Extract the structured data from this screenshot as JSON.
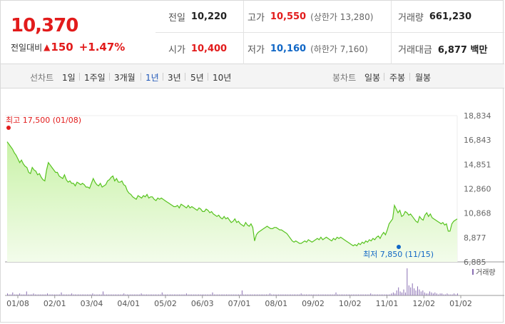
{
  "summary": {
    "price": "10,370",
    "change_label": "전일대비",
    "change_arrow": "▲",
    "change_amount": "150",
    "change_pct": "+1.47%"
  },
  "info": {
    "prev_label": "전일",
    "prev_value": "10,220",
    "high_label": "고가",
    "high_value": "10,550",
    "upper_limit": "(상한가 13,280)",
    "volume_label": "거래량",
    "volume_value": "661,230",
    "open_label": "시가",
    "open_value": "10,400",
    "low_label": "저가",
    "low_value": "10,160",
    "lower_limit": "(하한가 7,160)",
    "amount_label": "거래대금",
    "amount_value": "6,877 백만"
  },
  "tabs": {
    "line_label": "선차트",
    "periods": [
      "1일",
      "1주일",
      "3개월",
      "1년",
      "3년",
      "5년",
      "10년"
    ],
    "selected_period": "1년",
    "candle_label": "봉차트",
    "candle_periods": [
      "일봉",
      "주봉",
      "월봉"
    ]
  },
  "colors": {
    "up": "#e21b1b",
    "down": "#1167c6",
    "line": "#57c31f",
    "area_top": "#c9f2a8",
    "area_bottom": "#f3fceb",
    "volume": "#8a6fb3"
  },
  "chart_data": {
    "type": "area",
    "title": "",
    "ylim": [
      6885,
      18834
    ],
    "y_ticks": [
      "18,834",
      "16,843",
      "14,851",
      "12,860",
      "10,868",
      "8,877",
      "6,885"
    ],
    "x_ticks": [
      "01/08",
      "02/01",
      "03/04",
      "04/01",
      "05/02",
      "06/03",
      "07/01",
      "08/01",
      "09/02",
      "10/02",
      "11/01",
      "12/02",
      "01/02"
    ],
    "max_annotation": "최고 17,500 (01/08)",
    "min_annotation": "최저 7,850 (11/15)",
    "max_point": {
      "index": 0,
      "value": 17500
    },
    "min_point": {
      "index": 216,
      "value": 7850
    },
    "volume_legend": "거래량",
    "series": [
      {
        "values": [
          16700,
          16500,
          16300,
          16100,
          15800,
          15600,
          15300,
          15000,
          15200,
          14900,
          14700,
          14600,
          14200,
          14100,
          14600,
          14400,
          14300,
          14000,
          14100,
          13800,
          13600,
          13500,
          14400,
          15000,
          14800,
          14600,
          14400,
          14200,
          14200,
          13900,
          13800,
          13700,
          14000,
          13600,
          13400,
          13500,
          13300,
          13300,
          13100,
          13400,
          13300,
          13200,
          13300,
          13200,
          13000,
          13000,
          12900,
          13300,
          13700,
          13400,
          13200,
          13100,
          13300,
          13000,
          13100,
          13200,
          13500,
          13600,
          13800,
          13900,
          13500,
          13700,
          13400,
          13400,
          13500,
          13200,
          13100,
          12700,
          12500,
          12400,
          12200,
          12100,
          12000,
          12300,
          12200,
          12100,
          12300,
          12200,
          12400,
          12100,
          12200,
          12200,
          12000,
          11900,
          12100,
          12000,
          12100,
          12000,
          11900,
          11800,
          11700,
          11600,
          11500,
          11400,
          11400,
          11500,
          11300,
          11600,
          11500,
          11400,
          11300,
          11500,
          11300,
          11400,
          11300,
          11200,
          11100,
          11300,
          11200,
          11000,
          11000,
          11200,
          11100,
          10900,
          11000,
          10800,
          10700,
          10600,
          10700,
          10500,
          10400,
          10600,
          10400,
          10500,
          10300,
          10100,
          10200,
          10400,
          10100,
          10200,
          10000,
          9900,
          9800,
          10100,
          9900,
          9800,
          10000,
          9700,
          8600,
          9100,
          9300,
          9400,
          9500,
          9600,
          9700,
          9800,
          9700,
          9600,
          9600,
          9700,
          9700,
          9600,
          9500,
          9500,
          9400,
          9300,
          9200,
          9000,
          8800,
          8600,
          8500,
          8600,
          8500,
          8400,
          8400,
          8500,
          8600,
          8500,
          8700,
          8600,
          8500,
          8600,
          8700,
          8800,
          8700,
          8900,
          8700,
          8800,
          8900,
          8800,
          8700,
          8600,
          8800,
          8700,
          8900,
          8800,
          8900,
          8800,
          8700,
          8600,
          8500,
          8400,
          8300,
          8200,
          8300,
          8200,
          8400,
          8300,
          8500,
          8400,
          8600,
          8500,
          8700,
          8600,
          8800,
          8700,
          8900,
          9000,
          8800,
          9100,
          9300,
          9100,
          9500,
          10000,
          10200,
          10400,
          11500,
          11200,
          10900,
          11100,
          10600,
          10700,
          11000,
          10900,
          10700,
          10800,
          10600,
          10400,
          10200,
          10100,
          10600,
          10400,
          10300,
          10700,
          10900,
          10600,
          10800,
          10500,
          10400,
          10300,
          10200,
          10100,
          10000,
          10100,
          9900,
          10000,
          9400,
          9400,
          10000,
          10200,
          10300,
          10400
        ]
      }
    ],
    "volume": [
      2,
      1,
      1,
      3,
      1,
      1,
      1,
      2,
      1,
      1,
      1,
      4,
      1,
      1,
      1,
      2,
      1,
      1,
      1,
      1,
      1,
      1,
      1,
      2,
      1,
      1,
      1,
      1,
      1,
      1,
      1,
      3,
      1,
      1,
      1,
      1,
      1,
      2,
      1,
      1,
      1,
      1,
      1,
      1,
      1,
      1,
      1,
      1,
      1,
      2,
      1,
      1,
      1,
      1,
      1,
      4,
      1,
      1,
      1,
      1,
      1,
      1,
      1,
      1,
      1,
      1,
      1,
      2,
      1,
      1,
      1,
      1,
      1,
      1,
      1,
      1,
      1,
      2,
      1,
      1,
      1,
      1,
      1,
      1,
      1,
      1,
      1,
      1,
      1,
      3,
      1,
      1,
      1,
      1,
      1,
      1,
      1,
      1,
      1,
      1,
      1,
      1,
      1,
      2,
      1,
      1,
      1,
      1,
      1,
      1,
      1,
      1,
      1,
      1,
      1,
      1,
      1,
      1,
      3,
      1,
      1,
      1,
      1,
      1,
      1,
      1,
      1,
      1,
      1,
      1,
      1,
      1,
      1,
      1,
      1,
      5,
      1,
      1,
      1,
      1,
      1,
      1,
      1,
      1,
      1,
      1,
      1,
      1,
      1,
      1,
      1,
      2,
      1,
      1,
      1,
      1,
      1,
      1,
      1,
      1,
      1,
      1,
      1,
      1,
      1,
      1,
      1,
      1,
      1,
      2,
      1,
      1,
      1,
      1,
      1,
      1,
      1,
      1,
      1,
      1,
      1,
      1,
      1,
      1,
      1,
      1,
      1,
      1,
      1,
      3,
      1,
      1,
      1,
      1,
      1,
      1,
      1,
      1,
      1,
      1,
      1,
      1,
      1,
      1,
      1,
      1,
      1,
      1,
      1,
      2,
      1,
      1,
      1,
      1,
      1,
      1,
      1,
      1,
      1,
      1,
      1,
      2,
      3,
      2,
      5,
      8,
      4,
      3,
      6,
      3,
      27,
      10,
      8,
      12,
      7,
      5,
      9,
      6,
      4,
      5,
      3,
      2,
      2,
      4,
      3,
      2,
      3,
      2,
      1,
      2,
      2,
      1,
      1,
      2,
      1,
      1,
      1,
      2,
      1,
      2
    ]
  }
}
